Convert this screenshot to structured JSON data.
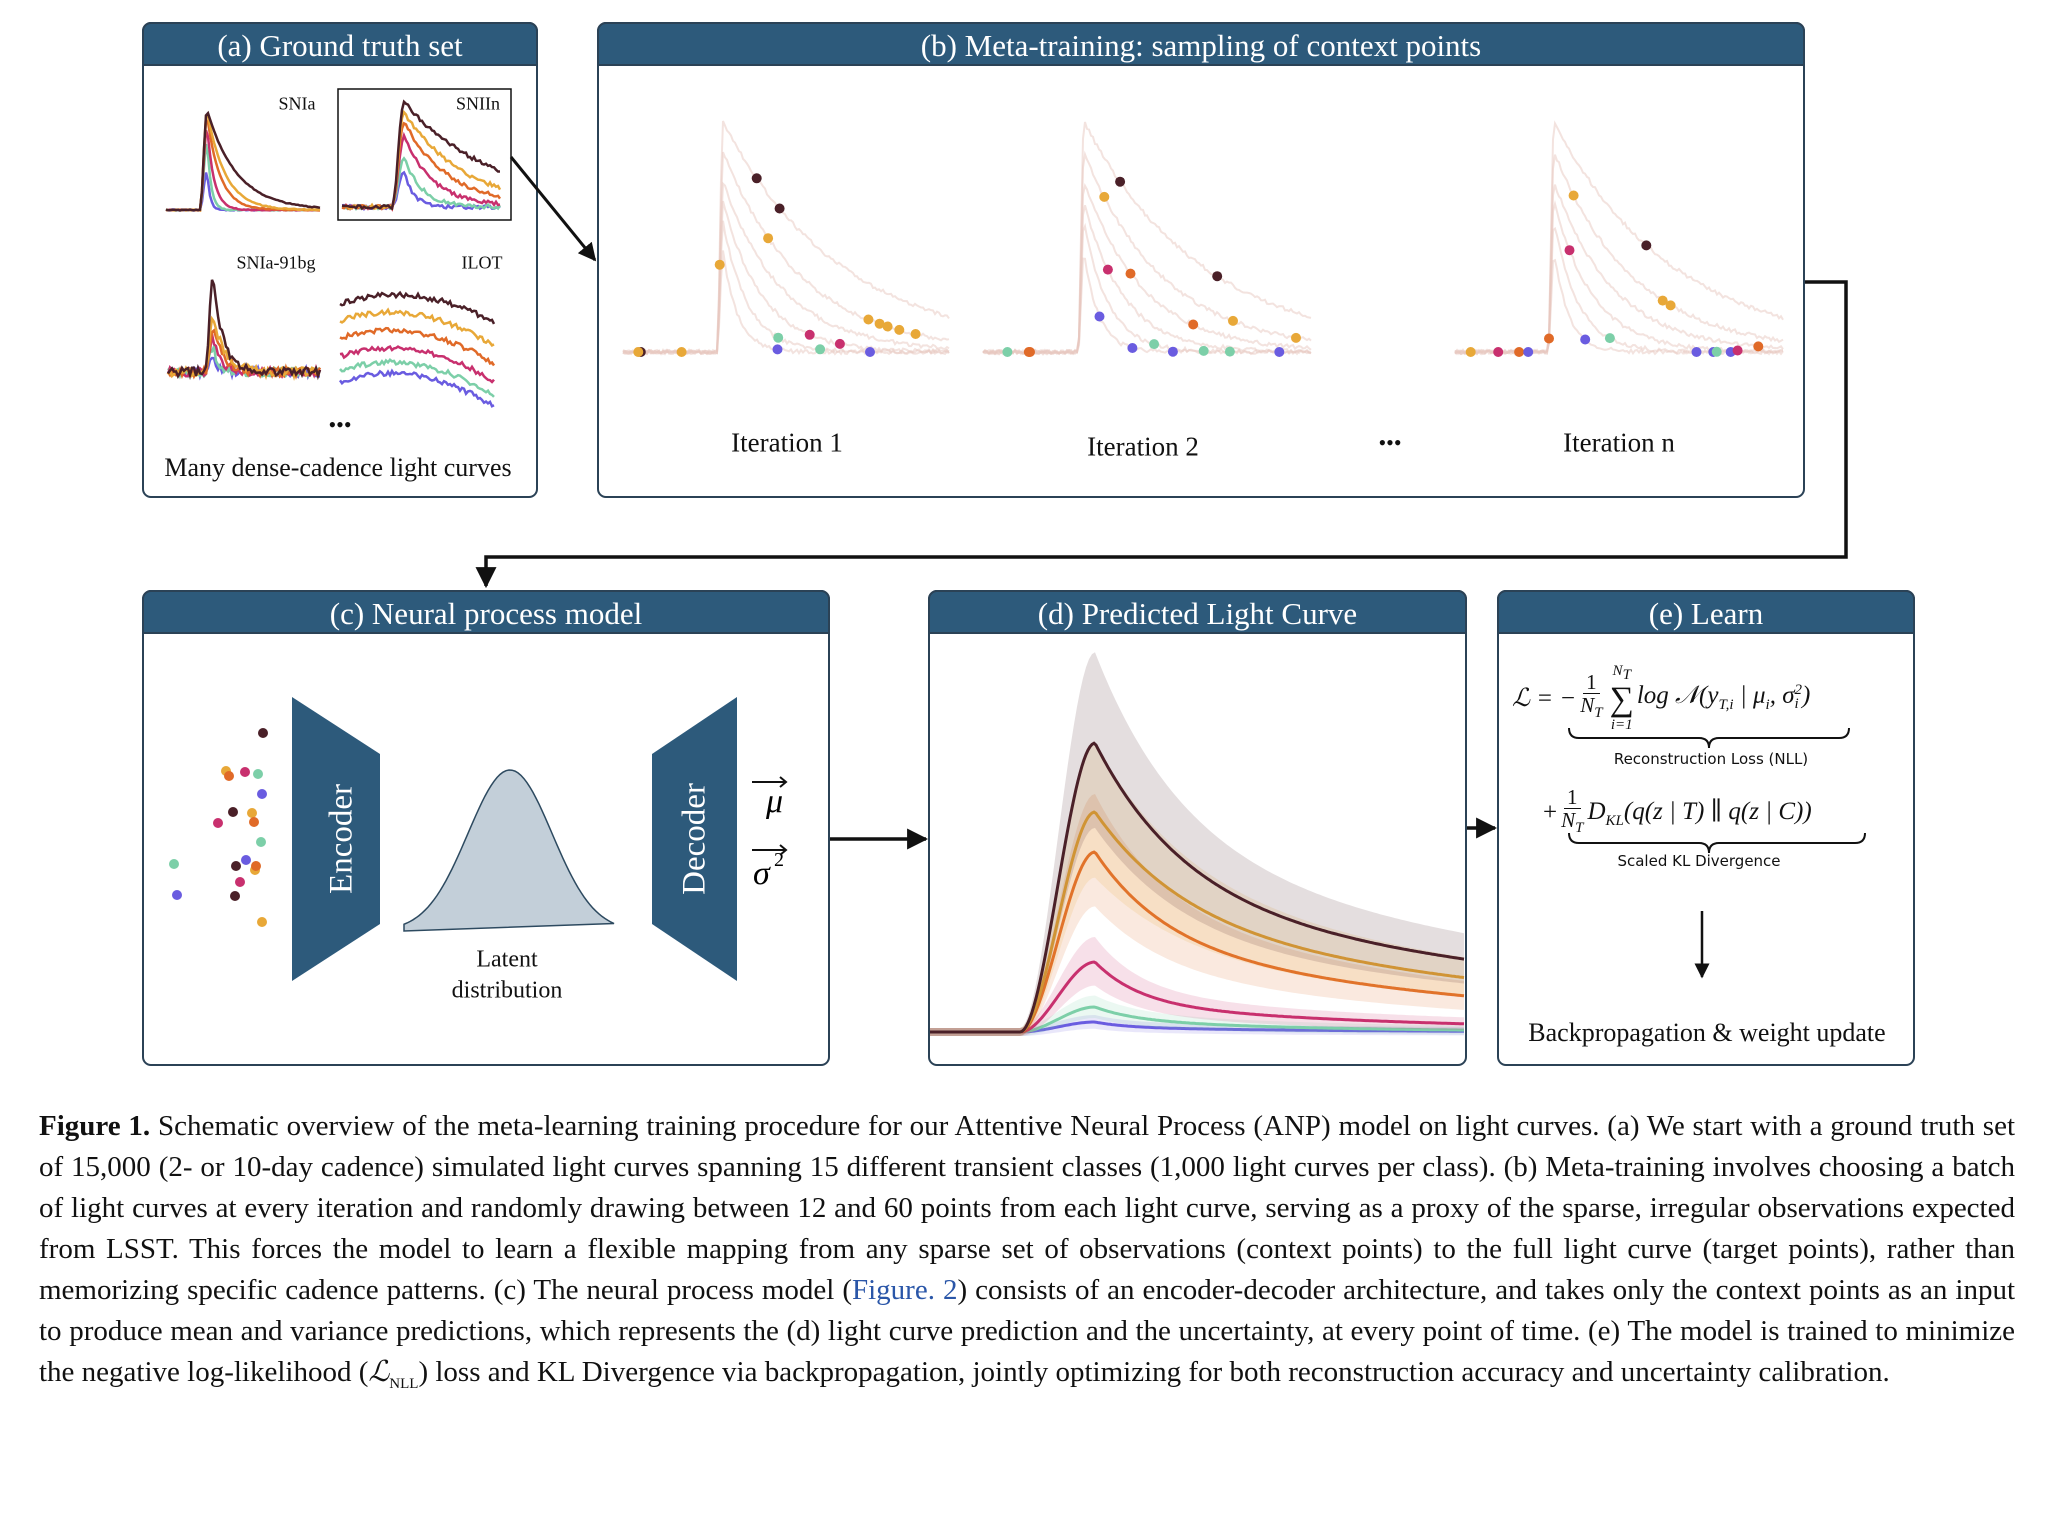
{
  "panels": {
    "a": {
      "title": "(a) Ground truth set",
      "classes": [
        "SNIa",
        "SNIIn",
        "SNIa-91bg",
        "ILOT"
      ],
      "ellipsis": "•••",
      "caption": "Many dense-cadence light curves"
    },
    "b": {
      "title": "(b) Meta-training: sampling of context points",
      "iterations": [
        "Iteration 1",
        "Iteration 2",
        "Iteration n"
      ],
      "ellipsis": "•••"
    },
    "c": {
      "title": "(c) Neural process model",
      "encoder": "Encoder",
      "decoder": "Decoder",
      "latent": [
        "Latent",
        "distribution"
      ],
      "mu": "μ",
      "sigma": "σ",
      "sigma_exp": "2"
    },
    "d": {
      "title": "(d) Predicted Light Curve"
    },
    "e": {
      "title": "(e) Learn",
      "nll": {
        "lhs": "ℒ = −",
        "num": "1",
        "den": "N",
        "den_sub": "T",
        "sum": "∑",
        "sum_top": "N",
        "sum_top_sub": "T",
        "sum_bottom": "i=1",
        "terms": [
          {
            "t": "log 𝒩(y"
          },
          {
            "sub": "T,i"
          },
          {
            "t": " | μ"
          },
          {
            "sub": "i"
          },
          {
            "t": ", σ"
          },
          {
            "sup": "2",
            "sub": "i"
          },
          {
            "t": ")"
          }
        ]
      },
      "nll_label": "Reconstruction Loss (NLL)",
      "kl": {
        "plus": "+",
        "num": "1",
        "den": "N",
        "den_sub": "T",
        "terms": [
          {
            "t": "D"
          },
          {
            "sub": "KL"
          },
          {
            "t": "(q(z | T) ∥ q(z | C))"
          }
        ]
      },
      "kl_label": "Scaled KL Divergence",
      "footer": "Backpropagation & weight update"
    }
  },
  "caption": {
    "label": "Figure 1.",
    "text_1": "Schematic overview of the meta-learning training procedure for our Attentive Neural Process (ANP) model on light curves. (a) We start with a ground truth set of 15,000 (2- or 10-day cadence) simulated light curves spanning 15 different transient classes (1,000 light curves per class). (b) Meta-training involves choosing a batch of light curves at every iteration and randomly drawing between 12 and 60 points from each light curve, serving as a proxy of the sparse, irregular observations expected from LSST. This forces the model to learn a flexible mapping from any sparse set of observations (context points) to the full light curve (target points), rather than memorizing specific cadence patterns. (c) The neural process model (",
    "link": "Figure. 2",
    "text_2": ") consists of an encoder-decoder architecture, and takes only the context points as an input to produce mean and variance predictions, which represents the (d) light curve prediction and the uncertainty, at every point of time. (e) The model is trained to minimize the negative log-likelihood (",
    "math": "ℒ",
    "math_sub": "NLL",
    "text_3": ") loss and KL Divergence via backpropagation, jointly optimizing for both reconstruction accuracy and uncertainty calibration."
  }
}
